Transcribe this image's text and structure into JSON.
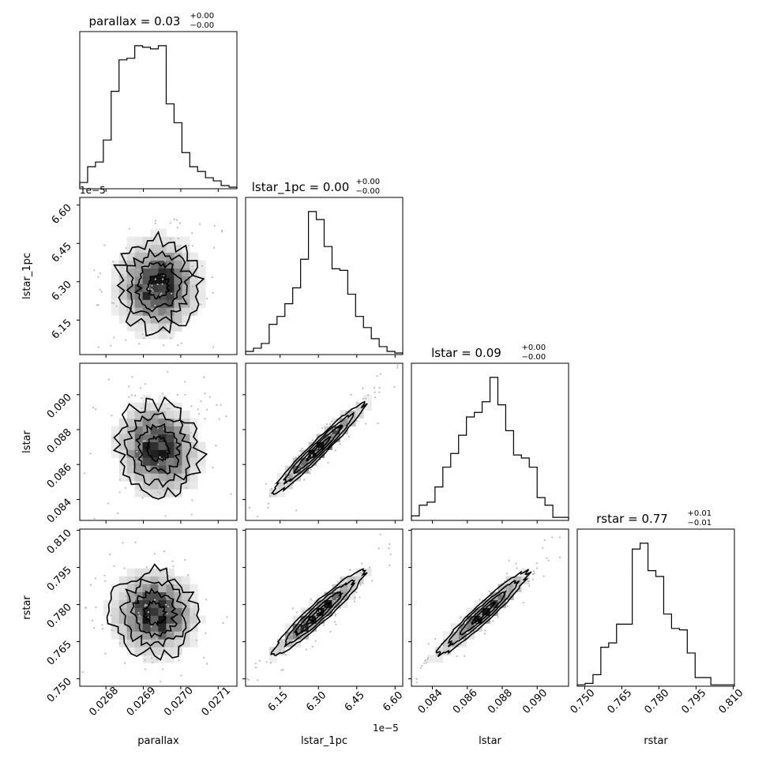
{
  "figure": {
    "type": "corner",
    "offset_labels": {
      "lstar_1pc_y": "1e−5",
      "lstar_1pc_x": "1e−5"
    }
  },
  "chart_data": [
    {
      "type": "histogram",
      "param": "parallax",
      "title_name": "parallax",
      "title_value": "0.03",
      "title_plus": "+0.00",
      "title_minus": "−0.00",
      "xlabel": "parallax",
      "xlim": [
        0.02673,
        0.02715
      ],
      "xticks": [
        "0.0268",
        "0.0269",
        "0.0270",
        "0.0271"
      ],
      "xtick_values": [
        0.0268,
        0.0269,
        0.027,
        0.0271
      ],
      "bins": 20,
      "counts": [
        4,
        14,
        17,
        31,
        62,
        82,
        83,
        91,
        90,
        89,
        91,
        54,
        42,
        23,
        14,
        11,
        7,
        5,
        2,
        1
      ]
    },
    {
      "type": "histogram",
      "param": "lstar_1pc",
      "title_name": "lstar_1pc",
      "title_value": "0.00",
      "title_plus": "+0.00",
      "title_minus": "−0.00",
      "xlabel": "lstar_1pc",
      "xlim": [
        6.015,
        6.63
      ],
      "xticks": [
        "6.15",
        "6.30",
        "6.45",
        "6.60"
      ],
      "xtick_values": [
        6.15,
        6.3,
        6.45,
        6.6
      ],
      "bins": 20,
      "counts": [
        2,
        4,
        7,
        19,
        24,
        32,
        42,
        60,
        90,
        85,
        68,
        54,
        53,
        38,
        24,
        17,
        10,
        5,
        2,
        1
      ]
    },
    {
      "type": "histogram",
      "param": "lstar",
      "title_name": "lstar",
      "title_value": "0.09",
      "title_plus": "+0.00",
      "title_minus": "−0.00",
      "xlabel": "lstar",
      "xlim": [
        0.0828,
        0.0918
      ],
      "xticks": [
        "0.084",
        "0.086",
        "0.088",
        "0.090"
      ],
      "xtick_values": [
        0.084,
        0.086,
        0.088,
        0.09
      ],
      "bins": 20,
      "counts": [
        3,
        10,
        12,
        22,
        35,
        44,
        56,
        68,
        71,
        78,
        94,
        76,
        59,
        43,
        41,
        35,
        15,
        10,
        2,
        2
      ]
    },
    {
      "type": "histogram",
      "param": "rstar",
      "title_name": "rstar",
      "title_value": "0.77",
      "title_plus": "+0.01",
      "title_minus": "−0.01",
      "xlabel": "rstar",
      "xlim": [
        0.747,
        0.8105
      ],
      "xticks": [
        "0.750",
        "0.765",
        "0.780",
        "0.795",
        "0.810"
      ],
      "xtick_values": [
        0.75,
        0.765,
        0.78,
        0.795,
        0.81
      ],
      "bins": 20,
      "counts": [
        1,
        2,
        8,
        27,
        30,
        43,
        43,
        95,
        99,
        80,
        76,
        50,
        40,
        39,
        23,
        6,
        6,
        1,
        1,
        1
      ]
    },
    {
      "type": "2d-density",
      "x": "parallax",
      "y": "lstar_1pc",
      "ylabel": "lstar_1pc",
      "ylim": [
        6.015,
        6.63
      ],
      "yticks": [
        "6.15",
        "6.30",
        "6.45",
        "6.60"
      ],
      "ytick_values": [
        6.15,
        6.3,
        6.45,
        6.6
      ],
      "mean": [
        0.02694,
        6.285
      ],
      "sd": [
        5.5e-05,
        0.09
      ],
      "corr": 0.0
    },
    {
      "type": "2d-density",
      "x": "parallax",
      "y": "lstar",
      "ylabel": "lstar",
      "ylim": [
        0.0828,
        0.0918
      ],
      "yticks": [
        "0.084",
        "0.086",
        "0.088",
        "0.090"
      ],
      "ytick_values": [
        0.084,
        0.086,
        0.088,
        0.09
      ],
      "mean": [
        0.02694,
        0.0869
      ],
      "sd": [
        5.5e-05,
        0.0013
      ],
      "corr": -0.1
    },
    {
      "type": "2d-density",
      "x": "lstar_1pc",
      "y": "lstar",
      "mean": [
        6.3,
        0.0869
      ],
      "sd": [
        0.09,
        0.0013
      ],
      "corr": 0.97
    },
    {
      "type": "2d-density",
      "x": "parallax",
      "y": "rstar",
      "ylabel": "rstar",
      "ylim": [
        0.747,
        0.8105
      ],
      "yticks": [
        "0.750",
        "0.765",
        "0.780",
        "0.795",
        "0.810"
      ],
      "ytick_values": [
        0.75,
        0.765,
        0.78,
        0.795,
        0.81
      ],
      "mean": [
        0.02693,
        0.7765
      ],
      "sd": [
        5.5e-05,
        0.0085
      ],
      "corr": -0.05
    },
    {
      "type": "2d-density",
      "x": "lstar_1pc",
      "y": "rstar",
      "mean": [
        6.3,
        0.7765
      ],
      "sd": [
        0.09,
        0.0085
      ],
      "corr": 0.95
    },
    {
      "type": "2d-density",
      "x": "lstar",
      "y": "rstar",
      "mean": [
        0.0869,
        0.7765
      ],
      "sd": [
        0.0013,
        0.0085
      ],
      "corr": 0.96
    }
  ]
}
